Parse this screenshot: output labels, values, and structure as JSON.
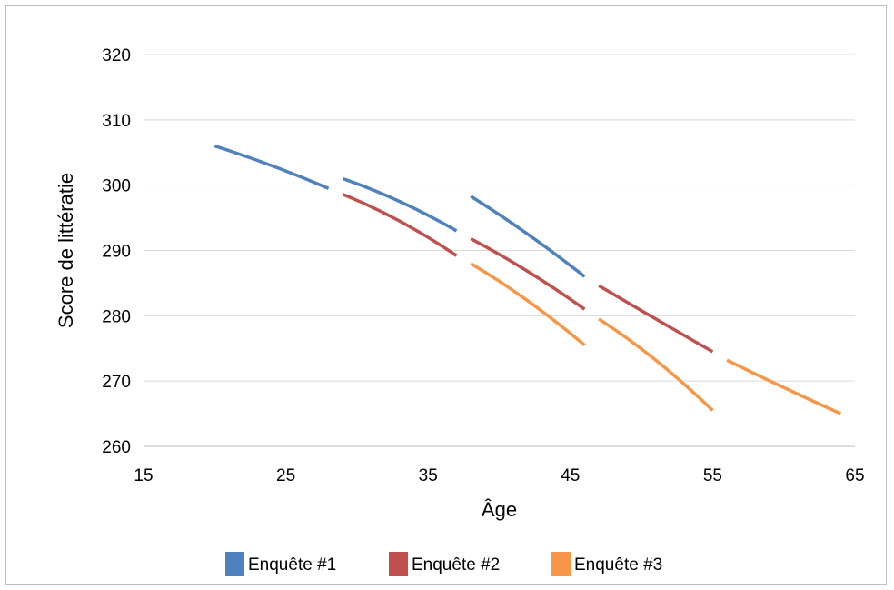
{
  "chart_data": {
    "type": "line",
    "xlabel": "Âge",
    "ylabel": "Score de littératie",
    "xlim": [
      15,
      65
    ],
    "ylim": [
      260,
      320
    ],
    "xticks": [
      15,
      25,
      35,
      45,
      55,
      65
    ],
    "yticks": [
      260,
      270,
      280,
      290,
      300,
      310,
      320
    ],
    "grid": "horizontal",
    "legend_position": "bottom",
    "series": [
      {
        "name": "Enquête #1",
        "color": "#4f81bd",
        "segments": [
          [
            [
              20,
              306.0
            ],
            [
              24,
              303.0
            ],
            [
              28,
              299.5
            ]
          ],
          [
            [
              29,
              301.0
            ],
            [
              33,
              297.5
            ],
            [
              37,
              293.0
            ]
          ],
          [
            [
              38,
              298.3
            ],
            [
              42,
              292.5
            ],
            [
              46,
              286.0
            ]
          ]
        ]
      },
      {
        "name": "Enquête #2",
        "color": "#c0504d",
        "segments": [
          [
            [
              29,
              298.6
            ],
            [
              33,
              294.5
            ],
            [
              37,
              289.2
            ]
          ],
          [
            [
              38,
              291.8
            ],
            [
              42,
              286.8
            ],
            [
              46,
              281.0
            ]
          ],
          [
            [
              47,
              284.6
            ],
            [
              51,
              279.5
            ],
            [
              55,
              274.5
            ]
          ]
        ]
      },
      {
        "name": "Enquête #3",
        "color": "#f79646",
        "segments": [
          [
            [
              38,
              288.0
            ],
            [
              42,
              282.3
            ],
            [
              46,
              275.5
            ]
          ],
          [
            [
              47,
              279.5
            ],
            [
              51,
              273.2
            ],
            [
              55,
              265.5
            ]
          ],
          [
            [
              56,
              273.2
            ],
            [
              60,
              269.0
            ],
            [
              64,
              265.0
            ]
          ]
        ]
      }
    ]
  }
}
